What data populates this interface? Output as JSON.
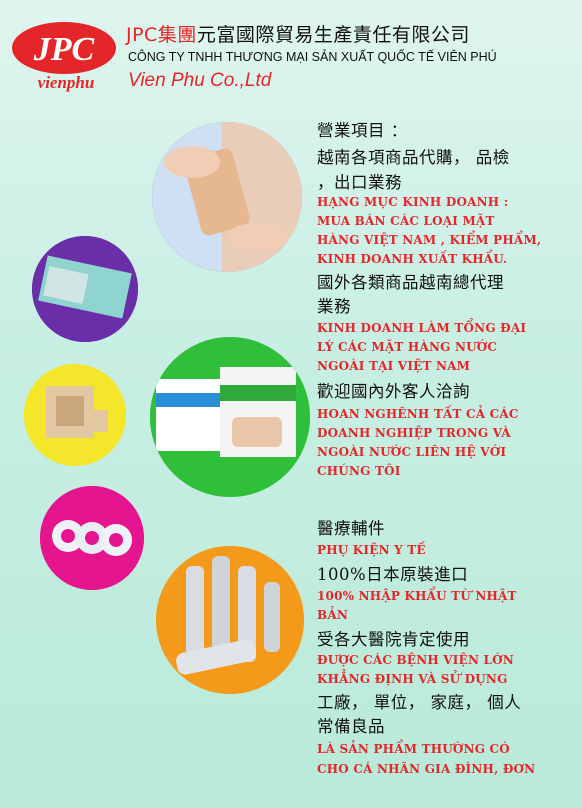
{
  "header": {
    "logo_text": "JPC",
    "logo_sub": "vienphu",
    "cn_prefix": "JPC集團",
    "cn_name": "元富國際貿易生產責任有限公司",
    "vn_name": "CÔNG TY TNHH THƯƠNG MẠI SẢN XUẤT QUỐC TẾ VIÊN PHÚ",
    "en_name": "Vien Phu Co.,Ltd"
  },
  "colors": {
    "accent_red": "#e4262a",
    "circle_blue": "#1a6fc7",
    "circle_purple": "#6a2fa8",
    "circle_green": "#2fbf3a",
    "circle_yellow": "#f4e62a",
    "circle_magenta": "#e4158e",
    "circle_orange": "#f39a1a"
  },
  "images": {
    "circle_1": "bandage-on-finger-image",
    "circle_2": "gauze-pad-image",
    "circle_3": "bandage-boxes-image",
    "circle_4": "adhesive-pads-image",
    "circle_5": "tape-rolls-image",
    "circle_6": "bandage-strips-image"
  },
  "content": {
    "b1_zh_1": "營業項目 ：",
    "b1_zh_2": "越南各項商品代購， 品檢",
    "b1_zh_3": "，出口業務",
    "b1_vn_1": "HẠNG MỤC KINH  DOANH :",
    "b1_vn_2": "MUA BÁN CÁC LOẠI MẶT",
    "b1_vn_3": "HÀNG VIỆT NAM , KIỂM PHẨM,",
    "b1_vn_4": "KINH  DOANH XUẤT KHẨU.",
    "b2_zh_1": "國外各類商品越南總代理",
    "b2_zh_2": "業務",
    "b2_vn_1": "KINH DOANH LÀM TỔNG ĐẠI",
    "b2_vn_2": "LÝ  CÁC MẶT HÀNG NƯỚC",
    "b2_vn_3": "NGOÀI TẠI  VIỆT NAM",
    "b3_zh_1": "歡迎國內外客人洽詢",
    "b3_vn_1": "HOAN NGHÊNH TẤT CẢ CÁC",
    "b3_vn_2": "DOANH NGHIỆP TRONG VÀ",
    "b3_vn_3": "NGOÀI  NƯỚC  LIÊN HỆ VỚI",
    "b3_vn_4": "CHÚNG TÔI",
    "b4_zh_1": "醫療輔件",
    "b4_vn_1": "PHỤ KIỆN Y TẾ",
    "b5_zh_1": "100%日本原裝進口",
    "b5_vn_1": "100% NHẬP  KHẨU TỪ NHẬT",
    "b5_vn_2": "BẢN",
    "b6_zh_1": "受各大醫院肯定使用",
    "b6_vn_1": "ĐƯỢC CÁC BỆNH  VIỆN  LỚN",
    "b6_vn_2": "KHẲNG ĐỊNH VÀ SỬ DỤNG",
    "b7_zh_1": "工廠， 單位， 家庭， 個人",
    "b7_zh_2": "常備良品",
    "b7_vn_1": "LÀ SẢN PHẨM THƯỜNG CÓ",
    "b7_vn_2": "CHO CÁ NHÂN  GIA ĐÌNH, ĐƠN"
  }
}
